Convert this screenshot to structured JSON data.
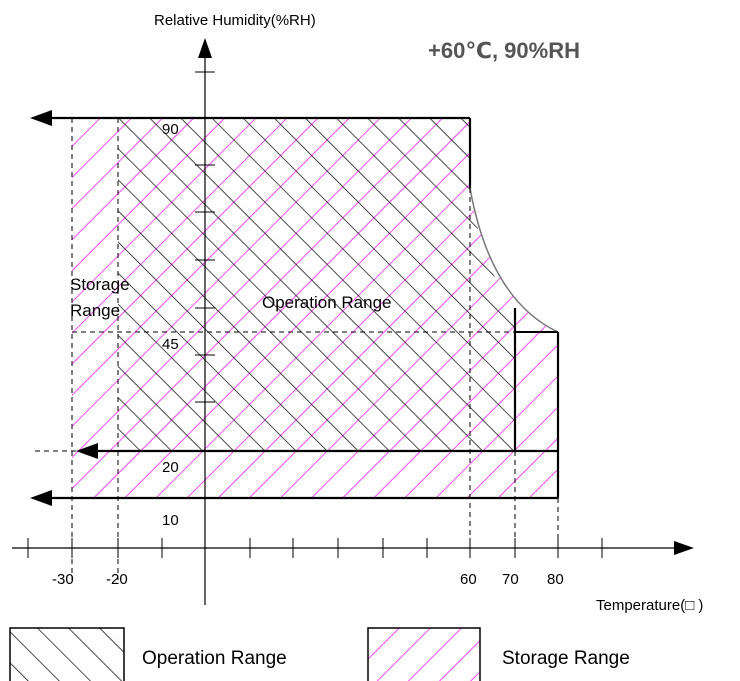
{
  "diagram": {
    "y_axis_label": "Relative Humidity(%RH)",
    "x_axis_label": "Temperature(□ )",
    "corner_note": "+60℃, 90%RH",
    "region_labels": {
      "storage_line1": "Storage",
      "storage_line2": "Range",
      "operation": "Operation Range"
    },
    "y_ticks": [
      "90",
      "45",
      "20",
      "10"
    ],
    "x_ticks": [
      "-30",
      "-20",
      "60",
      "70",
      "80"
    ],
    "legend": {
      "operation": "Operation Range",
      "storage": "Storage Range"
    },
    "colors": {
      "storage_hatch": "#ff00ff",
      "operation_hatch": "#000000",
      "note_text": "#555555"
    }
  }
}
